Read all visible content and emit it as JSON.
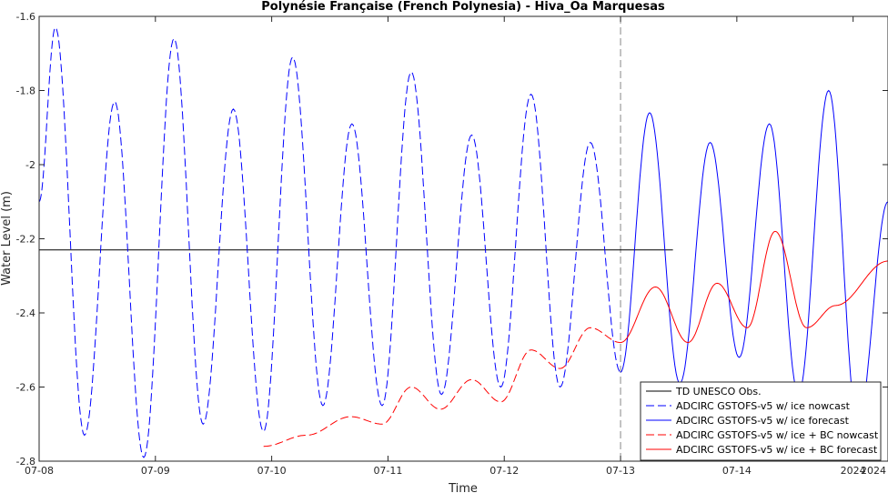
{
  "chart_data": {
    "type": "line",
    "title": "Polynésie Française (French Polynesia) - Hiva_Oa Marquesas",
    "xlabel": "Time",
    "ylabel": "Water Level (m)",
    "x_unit": "day",
    "xlim": [
      0,
      7.3
    ],
    "ylim": [
      -2.8,
      -1.6
    ],
    "x_ticks": [
      0,
      1,
      2,
      3,
      4,
      5,
      6,
      7
    ],
    "x_tick_labels": [
      "07-08",
      "07-09",
      "07-10",
      "07-11",
      "07-12",
      "07-13",
      "07-14",
      "2024"
    ],
    "y_ticks": [
      -2.8,
      -2.6,
      -2.4,
      -2.2,
      -2.0,
      -1.8,
      -1.6
    ],
    "y_tick_labels": [
      "-2.8",
      "-2.6",
      "-2.4",
      "-2.2",
      "-2",
      "-1.8",
      "-1.6"
    ],
    "nowcast_forecast_divider_x": 5.0,
    "grid": false,
    "legend_position": "bottom-right",
    "series": [
      {
        "name": "TD UNESCO Obs.",
        "color": "#000000",
        "style": "solid",
        "x": [
          0.0,
          5.45
        ],
        "y": [
          -2.23,
          -2.23
        ]
      },
      {
        "name": "ADCIRC GSTOFS-v5 w/ ice nowcast",
        "color": "#0000ff",
        "style": "dashed",
        "extrema": {
          "x": [
            0.0,
            0.14,
            0.39,
            0.65,
            0.9,
            1.16,
            1.41,
            1.67,
            1.93,
            2.18,
            2.44,
            2.69,
            2.95,
            3.2,
            3.46,
            3.72,
            3.97,
            4.23,
            4.48,
            4.74,
            5.0
          ],
          "y": [
            -2.1,
            -1.63,
            -2.73,
            -1.83,
            -2.79,
            -1.66,
            -2.7,
            -1.85,
            -2.72,
            -1.71,
            -2.65,
            -1.89,
            -2.65,
            -1.75,
            -2.62,
            -1.92,
            -2.6,
            -1.81,
            -2.6,
            -1.94,
            -2.56
          ]
        }
      },
      {
        "name": "ADCIRC GSTOFS-v5 w/ ice forecast",
        "color": "#0000ff",
        "style": "solid",
        "extrema": {
          "x": [
            5.0,
            5.25,
            5.51,
            5.77,
            6.02,
            6.28,
            6.53,
            6.79,
            7.04,
            7.3
          ],
          "y": [
            -2.56,
            -1.86,
            -2.59,
            -1.94,
            -2.52,
            -1.89,
            -2.62,
            -1.8,
            -2.7,
            -2.1
          ]
        }
      },
      {
        "name": "ADCIRC GSTOFS-v5 w/ ice + BC nowcast",
        "color": "#ff0000",
        "style": "dashed",
        "extrema": {
          "x": [
            1.93,
            2.3,
            2.68,
            2.95,
            3.2,
            3.45,
            3.72,
            3.97,
            4.23,
            4.48,
            4.74,
            5.0
          ],
          "y": [
            -2.76,
            -2.73,
            -2.68,
            -2.7,
            -2.6,
            -2.66,
            -2.58,
            -2.64,
            -2.5,
            -2.55,
            -2.44,
            -2.48
          ]
        }
      },
      {
        "name": "ADCIRC GSTOFS-v5 w/ ice + BC forecast",
        "color": "#ff0000",
        "style": "solid",
        "extrema": {
          "x": [
            5.0,
            5.3,
            5.58,
            5.83,
            6.09,
            6.33,
            6.6,
            6.85,
            7.3
          ],
          "y": [
            -2.48,
            -2.33,
            -2.48,
            -2.32,
            -2.44,
            -2.18,
            -2.44,
            -2.38,
            -2.26
          ]
        }
      }
    ]
  }
}
